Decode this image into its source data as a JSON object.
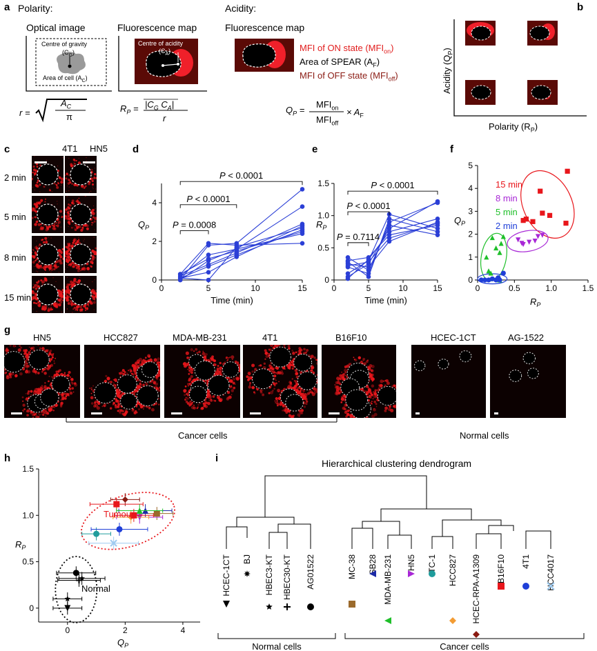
{
  "panel_letters": {
    "a": "a",
    "b": "b",
    "c": "c",
    "d": "d",
    "e": "e",
    "f": "f",
    "g": "g",
    "h": "h",
    "i": "i"
  },
  "panel_a": {
    "polarity_title": "Polarity:",
    "acidity_title": "Acidity:",
    "optical_image": "Optical image",
    "fluor_map_1": "Fluorescence map",
    "fluor_map_2": "Fluorescence map",
    "centre_gravity": "Centre of gravity",
    "cg_sym": "(C",
    "cg_sub": "G",
    "cg_close": ")",
    "area_cell": "Area of cell (A",
    "area_cell_sub": "C",
    "area_cell_close": ")",
    "centre_acidity": "Centre of acidity",
    "ca_sym": "(C",
    "ca_sub": "A",
    "ca_close": ")",
    "mfi_on": "MFI of ON state (MFI",
    "mfi_on_sub": "on",
    "mfi_on_close": ")",
    "area_spear": "Area of SPEAR (A",
    "area_spear_sub": "F",
    "area_spear_close": ")",
    "mfi_off": "MFI of OFF state (MFI",
    "mfi_off_sub": "off",
    "mfi_off_close": ")",
    "r_eq_lhs": "r =",
    "r_num": "A",
    "r_num_sub": "C",
    "r_den": "π",
    "rp_lhs": "R",
    "rp_lhs_sub": "P",
    "rp_eq": "=",
    "rp_num": "|C",
    "rp_num_sub1": "G",
    "rp_num_mid": " C",
    "rp_num_sub2": "A",
    "rp_num_close": "|",
    "rp_den": "r",
    "qp_lhs": "Q",
    "qp_lhs_sub": "P",
    "qp_eq": "=",
    "qp_num": "MFI",
    "qp_num_sub": "on",
    "qp_den": "MFI",
    "qp_den_sub": "off",
    "qp_times": "× A",
    "qp_times_sub": "F"
  },
  "panel_b": {
    "ylabel": "Acidity (Q",
    "ylabel_sub": "P",
    "ylabel_close": ")",
    "xlabel": "Polarity (R",
    "xlabel_sub": "P",
    "xlabel_close": ")"
  },
  "panel_c": {
    "col1": "4T1",
    "col2": "HN5",
    "rows": [
      "2 min",
      "5 min",
      "8 min",
      "15 min"
    ]
  },
  "panel_d": {
    "ylabel": "Q",
    "ylabel_sub": "P",
    "xlabel": "Time (min)",
    "xticks": [
      "0",
      "5",
      "10",
      "15"
    ],
    "yticks": [
      "0",
      "2",
      "4"
    ],
    "sig": [
      {
        "p": "P",
        "txt": " < 0.0001"
      },
      {
        "p": "P",
        "txt": " < 0.0001"
      },
      {
        "p": "P",
        "txt": " = 0.0008"
      }
    ],
    "series": [
      [
        0.1,
        0.7,
        1.3,
        2.6
      ],
      [
        0.3,
        1.1,
        1.5,
        2.5
      ],
      [
        0.0,
        1.8,
        1.9,
        4.7
      ],
      [
        0.2,
        1.3,
        1.6,
        3.8
      ],
      [
        0.1,
        0.4,
        1.2,
        2.8
      ],
      [
        0.0,
        1.0,
        1.6,
        2.4
      ],
      [
        0.2,
        0.8,
        1.4,
        2.9
      ],
      [
        0.3,
        1.9,
        1.8,
        1.9
      ],
      [
        0.1,
        0.0,
        1.7,
        2.7
      ]
    ]
  },
  "panel_e": {
    "ylabel": "R",
    "ylabel_sub": "P",
    "xlabel": "Time (min)",
    "xticks": [
      "0",
      "5",
      "10",
      "15"
    ],
    "yticks": [
      "0",
      "0.5",
      "1.0",
      "1.5"
    ],
    "sig": [
      {
        "p": "P",
        "txt": " < 0.0001"
      },
      {
        "p": "P",
        "txt": " < 0.0001"
      },
      {
        "p": "P",
        "txt": " = 0.7114"
      }
    ],
    "series": [
      [
        0.05,
        0.25,
        0.8,
        1.22
      ],
      [
        0.2,
        0.1,
        0.9,
        1.2
      ],
      [
        0.3,
        0.35,
        0.7,
        0.85
      ],
      [
        0.1,
        0.3,
        1.02,
        0.8
      ],
      [
        0.25,
        0.2,
        0.6,
        0.9
      ],
      [
        0.35,
        0.15,
        0.85,
        0.7
      ],
      [
        0.02,
        0.32,
        0.75,
        0.95
      ],
      [
        0.28,
        0.05,
        0.95,
        0.75
      ],
      [
        0.22,
        0.28,
        0.65,
        0.88
      ]
    ]
  },
  "panel_f": {
    "ylabel": "Q",
    "ylabel_sub": "P",
    "xlabel": "R",
    "xlabel_sub": "P",
    "xticks": [
      "0",
      "0.5",
      "1.0",
      "1.5"
    ],
    "yticks": [
      "0",
      "1",
      "2",
      "3",
      "4",
      "5"
    ],
    "legend": [
      {
        "label": "15 min",
        "color": "#e8161b"
      },
      {
        "label": "8 min",
        "color": "#a827d6"
      },
      {
        "label": "5 min",
        "color": "#1fbf2a"
      },
      {
        "label": "2 min",
        "color": "#1f3fd8"
      }
    ],
    "points": {
      "15": [
        [
          1.22,
          4.75
        ],
        [
          0.85,
          3.88
        ],
        [
          0.75,
          2.55
        ],
        [
          0.98,
          2.82
        ],
        [
          0.62,
          2.6
        ],
        [
          0.88,
          2.92
        ],
        [
          1.2,
          2.48
        ],
        [
          0.66,
          2.66
        ]
      ],
      "8": [
        [
          0.82,
          1.9
        ],
        [
          0.62,
          1.55
        ],
        [
          0.78,
          1.7
        ],
        [
          0.55,
          1.75
        ],
        [
          0.88,
          1.95
        ],
        [
          0.6,
          1.6
        ],
        [
          0.7,
          1.65
        ]
      ],
      "5": [
        [
          0.2,
          1.85
        ],
        [
          0.35,
          1.9
        ],
        [
          0.15,
          0.4
        ],
        [
          0.3,
          0.0
        ],
        [
          0.25,
          1.4
        ],
        [
          0.12,
          1.0
        ],
        [
          0.3,
          1.2
        ],
        [
          0.18,
          0.3
        ],
        [
          0.32,
          1.6
        ]
      ],
      "2": [
        [
          0.05,
          0.0
        ],
        [
          0.1,
          0.0
        ],
        [
          0.2,
          0.05
        ],
        [
          0.3,
          0.0
        ],
        [
          0.35,
          0.3
        ],
        [
          0.25,
          0.0
        ],
        [
          0.15,
          0.0
        ],
        [
          0.28,
          0.1
        ]
      ]
    }
  },
  "panel_g": {
    "cells": [
      "HN5",
      "HCC827",
      "MDA-MB-231",
      "4T1",
      "B16F10",
      "HCEC-1CT",
      "AG-1522"
    ],
    "cancer": "Cancer cells",
    "normal": "Normal cells"
  },
  "panel_h": {
    "ylabel": "R",
    "ylabel_sub": "P",
    "xlabel": "Q",
    "xlabel_sub": "P",
    "xticks": [
      "0",
      "2",
      "4"
    ],
    "yticks": [
      "0",
      "0.5",
      "1.0",
      "1.5"
    ],
    "tumour": "Tumour",
    "normal": "Normal",
    "points": [
      {
        "q": 0.3,
        "r": 0.38,
        "c": "#000000",
        "m": "circle"
      },
      {
        "q": 0.0,
        "r": 0.0,
        "c": "#000000",
        "m": "tri-down"
      },
      {
        "q": 0.0,
        "r": 0.1,
        "c": "#000000",
        "m": "star"
      },
      {
        "q": 0.4,
        "r": 0.3,
        "c": "#000000",
        "m": "plus"
      },
      {
        "q": 0.5,
        "r": 0.32,
        "c": "#000000",
        "m": "star"
      },
      {
        "q": 3.1,
        "r": 1.02,
        "c": "#9b6a2c",
        "m": "square"
      },
      {
        "q": 2.7,
        "r": 1.05,
        "c": "#1c2aa6",
        "m": "tri-up"
      },
      {
        "q": 2.5,
        "r": 0.98,
        "c": "#a827d6",
        "m": "tri-down"
      },
      {
        "q": 1.0,
        "r": 0.8,
        "c": "#1f9c9c",
        "m": "circle"
      },
      {
        "q": 2.2,
        "r": 0.98,
        "c": "#f39c34",
        "m": "diamond"
      },
      {
        "q": 2.0,
        "r": 1.17,
        "c": "#8a1a12",
        "m": "diamond"
      },
      {
        "q": 1.7,
        "r": 1.12,
        "c": "#e8161b",
        "m": "square"
      },
      {
        "q": 1.8,
        "r": 0.85,
        "c": "#1f3fd8",
        "m": "circle"
      },
      {
        "q": 1.6,
        "r": 0.7,
        "c": "#9fcbf0",
        "m": "cross"
      },
      {
        "q": 2.5,
        "r": 1.05,
        "c": "#1fbf2a",
        "m": "tri-up"
      },
      {
        "q": 2.3,
        "r": 1.0,
        "c": "#e8161b",
        "m": "square"
      }
    ]
  },
  "panel_i": {
    "title": "Hierarchical clustering dendrogram",
    "normal": "Normal cells",
    "cancer": "Cancer cells",
    "leaves": [
      {
        "label": "HCEC-1CT",
        "c": "#000000",
        "m": "tri-down"
      },
      {
        "label": "BJ",
        "c": "#000000",
        "m": "star8"
      },
      {
        "label": "HBEC3-KT",
        "c": "#000000",
        "m": "star"
      },
      {
        "label": "HBEC30-KT",
        "c": "#000000",
        "m": "plus"
      },
      {
        "label": "AG01522",
        "c": "#000000",
        "m": "circle"
      },
      {
        "label": "MC-38",
        "c": "#9b6a2c",
        "m": "square"
      },
      {
        "label": "SB28",
        "c": "#1c2aa6",
        "m": "tri-left"
      },
      {
        "label": "MDA-MB-231",
        "c": "#1fbf2a",
        "m": "tri-left"
      },
      {
        "label": "HN5",
        "c": "#a827d6",
        "m": "tri-right"
      },
      {
        "label": "TC-1",
        "c": "#1f9c9c",
        "m": "circle"
      },
      {
        "label": "HCC827",
        "c": "#f39c34",
        "m": "diamond"
      },
      {
        "label": "HCEC-RPA-A1309",
        "c": "#8a1a12",
        "m": "diamond"
      },
      {
        "label": "B16F10",
        "c": "#e8161b",
        "m": "square"
      },
      {
        "label": "4T1",
        "c": "#1f3fd8",
        "m": "circle"
      },
      {
        "label": "HCC4017",
        "c": "#9fcbf0",
        "m": "cross"
      }
    ]
  }
}
